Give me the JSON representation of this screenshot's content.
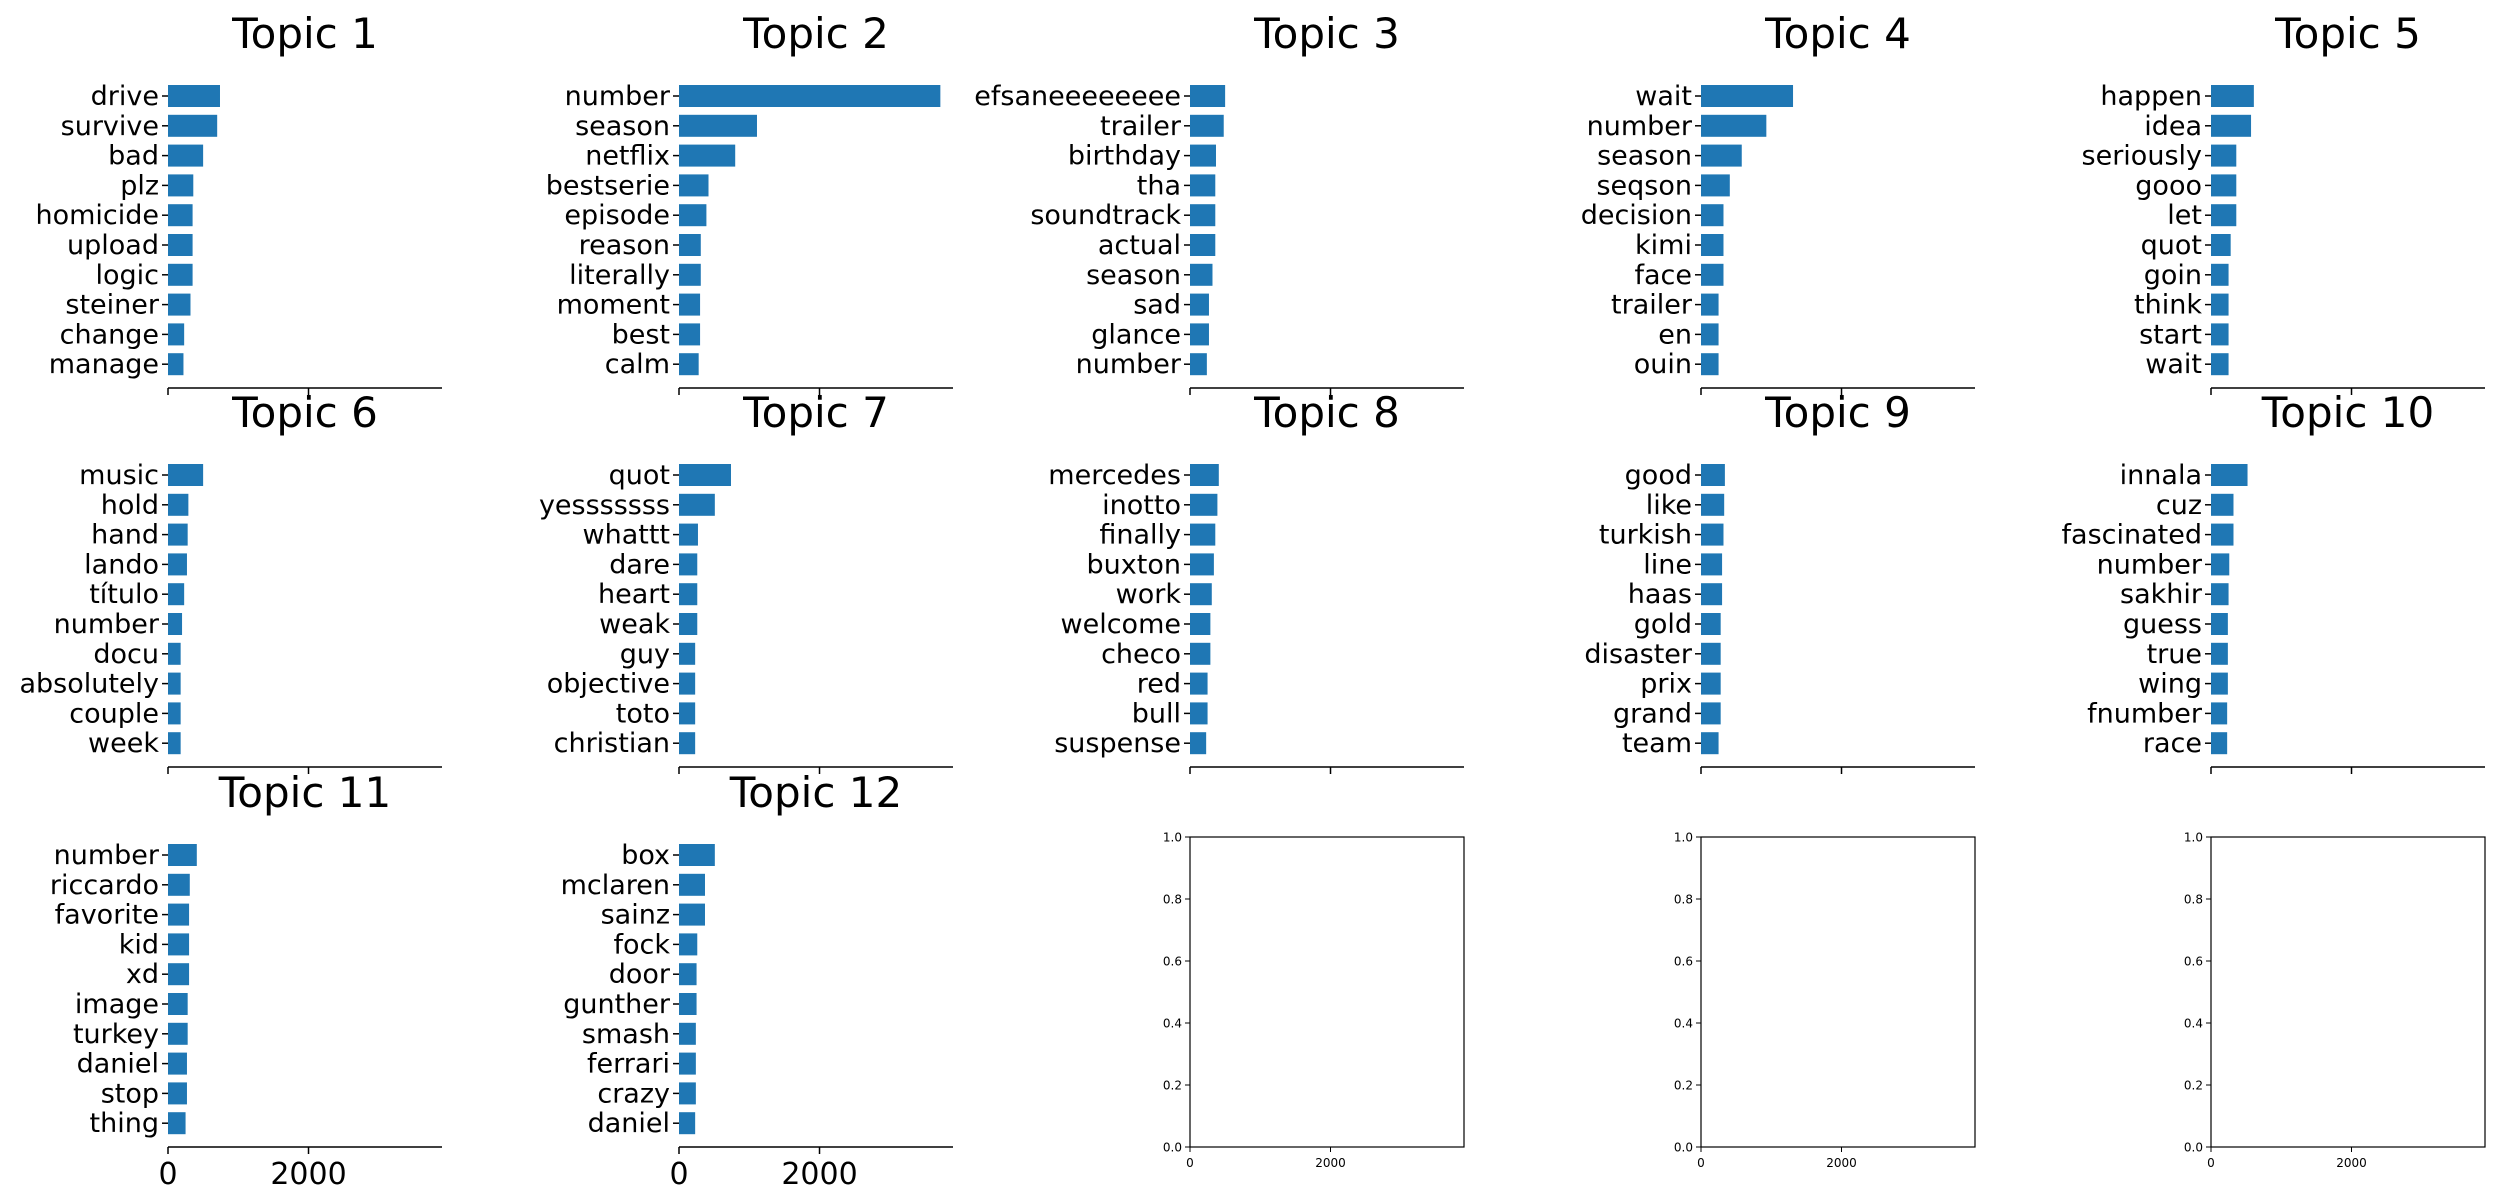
{
  "figure": {
    "bar_color": "#1f77b4",
    "empty_panel_yticks": [
      "0.0",
      "0.2",
      "0.4",
      "0.6",
      "0.8",
      "1.0"
    ]
  },
  "chart_data": [
    {
      "type": "bar",
      "orientation": "horizontal",
      "title": "Topic 1",
      "categories": [
        "drive",
        "survive",
        "bad",
        "plz",
        "homicide",
        "upload",
        "logic",
        "steiner",
        "change",
        "manage"
      ],
      "values": [
        740,
        700,
        500,
        360,
        350,
        350,
        350,
        320,
        230,
        220
      ],
      "xlim": [
        0,
        3900
      ],
      "xticks": [
        "0",
        "2000"
      ]
    },
    {
      "type": "bar",
      "orientation": "horizontal",
      "title": "Topic 2",
      "categories": [
        "number",
        "season",
        "netflix",
        "bestserie",
        "episode",
        "reason",
        "literally",
        "moment",
        "best",
        "calm"
      ],
      "values": [
        3720,
        1110,
        800,
        420,
        390,
        310,
        310,
        300,
        300,
        280
      ],
      "xlim": [
        0,
        3900
      ],
      "xticks": [
        "0",
        "2000"
      ]
    },
    {
      "type": "bar",
      "orientation": "horizontal",
      "title": "Topic 3",
      "categories": [
        "efsaneeeeeeee",
        "trailer",
        "birthday",
        "tha",
        "soundtrack",
        "actual",
        "season",
        "sad",
        "glance",
        "number"
      ],
      "values": [
        500,
        480,
        370,
        360,
        360,
        360,
        320,
        270,
        270,
        240
      ],
      "xlim": [
        0,
        3900
      ],
      "xticks": [
        "0",
        "2000"
      ]
    },
    {
      "type": "bar",
      "orientation": "horizontal",
      "title": "Topic 4",
      "categories": [
        "wait",
        "number",
        "season",
        "seqson",
        "decision",
        "kimi",
        "face",
        "trailer",
        "en",
        "ouin"
      ],
      "values": [
        1310,
        930,
        580,
        410,
        320,
        320,
        320,
        250,
        250,
        250
      ],
      "xlim": [
        0,
        3900
      ],
      "xticks": [
        "0",
        "2000"
      ]
    },
    {
      "type": "bar",
      "orientation": "horizontal",
      "title": "Topic 5",
      "categories": [
        "happen",
        "idea",
        "seriously",
        "gooo",
        "let",
        "quot",
        "goin",
        "think",
        "start",
        "wait"
      ],
      "values": [
        610,
        570,
        360,
        360,
        360,
        280,
        250,
        250,
        250,
        250
      ],
      "xlim": [
        0,
        3900
      ],
      "xticks": [
        "0",
        "2000"
      ]
    },
    {
      "type": "bar",
      "orientation": "horizontal",
      "title": "Topic 6",
      "categories": [
        "music",
        "hold",
        "hand",
        "lando",
        "título",
        "number",
        "docu",
        "absolutely",
        "couple",
        "week"
      ],
      "values": [
        500,
        290,
        280,
        270,
        230,
        200,
        180,
        180,
        180,
        180
      ],
      "xlim": [
        0,
        3900
      ],
      "xticks": [
        "0",
        "2000"
      ]
    },
    {
      "type": "bar",
      "orientation": "horizontal",
      "title": "Topic 7",
      "categories": [
        "quot",
        "yesssssss",
        "whattt",
        "dare",
        "heart",
        "weak",
        "guy",
        "objective",
        "toto",
        "christian"
      ],
      "values": [
        740,
        510,
        270,
        260,
        260,
        260,
        230,
        230,
        230,
        230
      ],
      "xlim": [
        0,
        3900
      ],
      "xticks": [
        "0",
        "2000"
      ]
    },
    {
      "type": "bar",
      "orientation": "horizontal",
      "title": "Topic 8",
      "categories": [
        "mercedes",
        "inotto",
        "finally",
        "buxton",
        "work",
        "welcome",
        "checo",
        "red",
        "bull",
        "suspense"
      ],
      "values": [
        410,
        390,
        360,
        340,
        310,
        290,
        290,
        250,
        250,
        230
      ],
      "xlim": [
        0,
        3900
      ],
      "xticks": [
        "0",
        "2000"
      ]
    },
    {
      "type": "bar",
      "orientation": "horizontal",
      "title": "Topic 9",
      "categories": [
        "good",
        "like",
        "turkish",
        "line",
        "haas",
        "gold",
        "disaster",
        "prix",
        "grand",
        "team"
      ],
      "values": [
        340,
        330,
        320,
        300,
        300,
        280,
        280,
        280,
        280,
        250
      ],
      "xlim": [
        0,
        3900
      ],
      "xticks": [
        "0",
        "2000"
      ]
    },
    {
      "type": "bar",
      "orientation": "horizontal",
      "title": "Topic 10",
      "categories": [
        "innala",
        "cuz",
        "fascinated",
        "number",
        "sakhir",
        "guess",
        "true",
        "wing",
        "fnumber",
        "race"
      ],
      "values": [
        520,
        320,
        320,
        260,
        250,
        240,
        240,
        240,
        230,
        230
      ],
      "xlim": [
        0,
        3900
      ],
      "xticks": [
        "0",
        "2000"
      ]
    },
    {
      "type": "bar",
      "orientation": "horizontal",
      "title": "Topic 11",
      "categories": [
        "number",
        "riccardo",
        "favorite",
        "kid",
        "xd",
        "image",
        "turkey",
        "daniel",
        "stop",
        "thing"
      ],
      "values": [
        410,
        310,
        300,
        300,
        300,
        280,
        280,
        270,
        270,
        250
      ],
      "xlim": [
        0,
        3900
      ],
      "xticks": [
        "0",
        "2000"
      ]
    },
    {
      "type": "bar",
      "orientation": "horizontal",
      "title": "Topic 12",
      "categories": [
        "box",
        "mclaren",
        "sainz",
        "fock",
        "door",
        "gunther",
        "smash",
        "ferrari",
        "crazy",
        "daniel"
      ],
      "values": [
        510,
        370,
        370,
        260,
        250,
        250,
        240,
        240,
        240,
        230
      ],
      "xlim": [
        0,
        3900
      ],
      "xticks": [
        "0",
        "2000"
      ]
    },
    {
      "type": "empty",
      "xlim": [
        0,
        3900
      ],
      "ylim": [
        0,
        1
      ],
      "xticks": [
        "0",
        "2000"
      ],
      "yticks": [
        "0.0",
        "0.2",
        "0.4",
        "0.6",
        "0.8",
        "1.0"
      ]
    },
    {
      "type": "empty",
      "xlim": [
        0,
        3900
      ],
      "ylim": [
        0,
        1
      ],
      "xticks": [
        "0",
        "2000"
      ],
      "yticks": [
        "0.0",
        "0.2",
        "0.4",
        "0.6",
        "0.8",
        "1.0"
      ]
    },
    {
      "type": "empty",
      "xlim": [
        0,
        3900
      ],
      "ylim": [
        0,
        1
      ],
      "xticks": [
        "0",
        "2000"
      ],
      "yticks": [
        "0.0",
        "0.2",
        "0.4",
        "0.6",
        "0.8",
        "1.0"
      ]
    }
  ]
}
